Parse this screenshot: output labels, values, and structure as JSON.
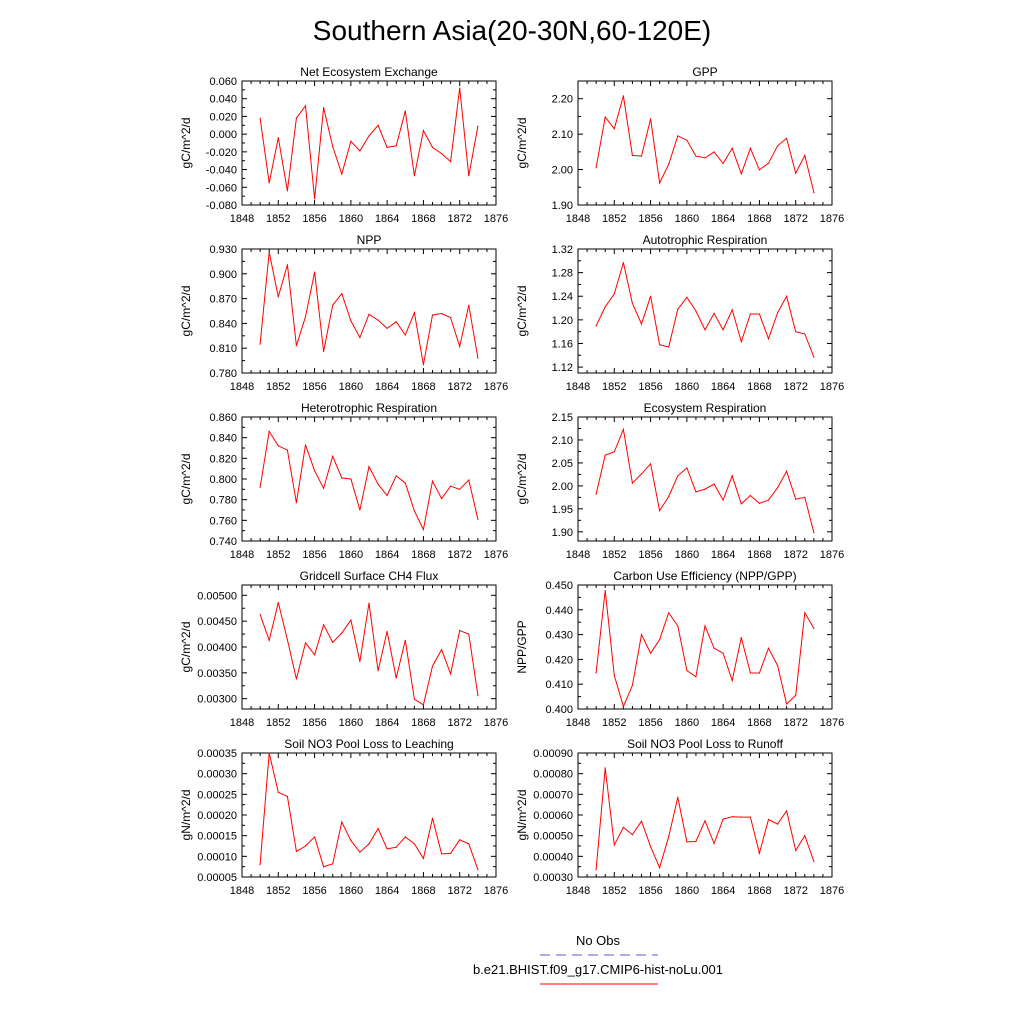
{
  "title": "Southern Asia(20-30N,60-120E)",
  "legend": {
    "obs_label": "No Obs",
    "obs_color": "#5b5bd6",
    "case_label": "b.e21.BHIST.f09_g17.CMIP6-hist-noLu.001",
    "case_color": "#ff0000"
  },
  "chart_data": [
    {
      "type": "line",
      "title": "Net Ecosystem Exchange",
      "ylabel": "gC/m^2/d",
      "xlim": [
        1848,
        1876
      ],
      "xticks": [
        "1848",
        "1852",
        "1856",
        "1860",
        "1864",
        "1868",
        "1872",
        "1876"
      ],
      "ylim": [
        -0.08,
        0.06
      ],
      "yticks": [
        "-0.080",
        "-0.060",
        "-0.040",
        "-0.020",
        "0.000",
        "0.020",
        "0.040",
        "0.060"
      ],
      "x": [
        1850,
        1851,
        1852,
        1853,
        1854,
        1855,
        1856,
        1857,
        1858,
        1859,
        1860,
        1861,
        1862,
        1863,
        1864,
        1865,
        1866,
        1867,
        1868,
        1869,
        1870,
        1871,
        1872,
        1873,
        1874
      ],
      "values": [
        0.018,
        -0.055,
        -0.004,
        -0.064,
        0.018,
        0.032,
        -0.073,
        0.03,
        -0.014,
        -0.045,
        -0.008,
        -0.019,
        -0.002,
        0.01,
        -0.015,
        -0.013,
        0.026,
        -0.047,
        0.004,
        -0.015,
        -0.022,
        -0.031,
        0.052,
        -0.047,
        0.009
      ]
    },
    {
      "type": "line",
      "title": "GPP",
      "ylabel": "gC/m^2/d",
      "xlim": [
        1848,
        1876
      ],
      "xticks": [
        "1848",
        "1852",
        "1856",
        "1860",
        "1864",
        "1868",
        "1872",
        "1876"
      ],
      "ylim": [
        1.9,
        2.25
      ],
      "yticks": [
        "1.90",
        "2.00",
        "2.10",
        "2.20"
      ],
      "x": [
        1850,
        1851,
        1852,
        1853,
        1854,
        1855,
        1856,
        1857,
        1858,
        1859,
        1860,
        1861,
        1862,
        1863,
        1864,
        1865,
        1866,
        1867,
        1868,
        1869,
        1870,
        1871,
        1872,
        1873,
        1874
      ],
      "values": [
        2.005,
        2.148,
        2.115,
        2.208,
        2.04,
        2.038,
        2.143,
        1.962,
        2.015,
        2.095,
        2.083,
        2.038,
        2.033,
        2.05,
        2.017,
        2.06,
        1.988,
        2.06,
        1.999,
        2.018,
        2.067,
        2.088,
        1.99,
        2.04,
        1.935
      ]
    },
    {
      "type": "line",
      "title": "NPP",
      "ylabel": "gC/m^2/d",
      "xlim": [
        1848,
        1876
      ],
      "xticks": [
        "1848",
        "1852",
        "1856",
        "1860",
        "1864",
        "1868",
        "1872",
        "1876"
      ],
      "ylim": [
        0.78,
        0.93
      ],
      "yticks": [
        "0.780",
        "0.810",
        "0.840",
        "0.870",
        "0.900",
        "0.930"
      ],
      "x": [
        1850,
        1851,
        1852,
        1853,
        1854,
        1855,
        1856,
        1857,
        1858,
        1859,
        1860,
        1861,
        1862,
        1863,
        1864,
        1865,
        1866,
        1867,
        1868,
        1869,
        1870,
        1871,
        1872,
        1873,
        1874
      ],
      "values": [
        0.815,
        0.926,
        0.872,
        0.911,
        0.813,
        0.848,
        0.902,
        0.806,
        0.862,
        0.876,
        0.843,
        0.823,
        0.851,
        0.844,
        0.834,
        0.842,
        0.826,
        0.853,
        0.79,
        0.85,
        0.852,
        0.847,
        0.812,
        0.862,
        0.798
      ]
    },
    {
      "type": "line",
      "title": "Autotrophic Respiration",
      "ylabel": "gC/m^2/d",
      "xlim": [
        1848,
        1876
      ],
      "xticks": [
        "1848",
        "1852",
        "1856",
        "1860",
        "1864",
        "1868",
        "1872",
        "1876"
      ],
      "ylim": [
        1.11,
        1.32
      ],
      "yticks": [
        "1.12",
        "1.16",
        "1.20",
        "1.24",
        "1.28",
        "1.32"
      ],
      "x": [
        1850,
        1851,
        1852,
        1853,
        1854,
        1855,
        1856,
        1857,
        1858,
        1859,
        1860,
        1861,
        1862,
        1863,
        1864,
        1865,
        1866,
        1867,
        1868,
        1869,
        1870,
        1871,
        1872,
        1873,
        1874
      ],
      "values": [
        1.19,
        1.222,
        1.244,
        1.297,
        1.228,
        1.193,
        1.24,
        1.158,
        1.154,
        1.218,
        1.238,
        1.215,
        1.183,
        1.211,
        1.183,
        1.217,
        1.163,
        1.21,
        1.21,
        1.168,
        1.212,
        1.24,
        1.18,
        1.176,
        1.137
      ]
    },
    {
      "type": "line",
      "title": "Heterotrophic Respiration",
      "ylabel": "gC/m^2/d",
      "xlim": [
        1848,
        1876
      ],
      "xticks": [
        "1848",
        "1852",
        "1856",
        "1860",
        "1864",
        "1868",
        "1872",
        "1876"
      ],
      "ylim": [
        0.74,
        0.86
      ],
      "yticks": [
        "0.740",
        "0.760",
        "0.780",
        "0.800",
        "0.820",
        "0.840",
        "0.860"
      ],
      "x": [
        1850,
        1851,
        1852,
        1853,
        1854,
        1855,
        1856,
        1857,
        1858,
        1859,
        1860,
        1861,
        1862,
        1863,
        1864,
        1865,
        1866,
        1867,
        1868,
        1869,
        1870,
        1871,
        1872,
        1873,
        1874
      ],
      "values": [
        0.792,
        0.846,
        0.832,
        0.828,
        0.777,
        0.833,
        0.808,
        0.791,
        0.822,
        0.801,
        0.8,
        0.77,
        0.812,
        0.795,
        0.784,
        0.803,
        0.796,
        0.769,
        0.751,
        0.798,
        0.781,
        0.793,
        0.79,
        0.799,
        0.761
      ]
    },
    {
      "type": "line",
      "title": "Ecosystem Respiration",
      "ylabel": "gC/m^2/d",
      "xlim": [
        1848,
        1876
      ],
      "xticks": [
        "1848",
        "1852",
        "1856",
        "1860",
        "1864",
        "1868",
        "1872",
        "1876"
      ],
      "ylim": [
        1.88,
        2.15
      ],
      "yticks": [
        "1.90",
        "1.95",
        "2.00",
        "2.05",
        "2.10",
        "2.15"
      ],
      "x": [
        1850,
        1851,
        1852,
        1853,
        1854,
        1855,
        1856,
        1857,
        1858,
        1859,
        1860,
        1861,
        1862,
        1863,
        1864,
        1865,
        1866,
        1867,
        1868,
        1869,
        1870,
        1871,
        1872,
        1873,
        1874
      ],
      "values": [
        1.982,
        2.067,
        2.074,
        2.123,
        2.006,
        2.026,
        2.048,
        1.946,
        1.977,
        2.022,
        2.039,
        1.987,
        1.993,
        2.004,
        1.969,
        2.022,
        1.961,
        1.979,
        1.962,
        1.969,
        1.996,
        2.032,
        1.971,
        1.975,
        1.898
      ]
    },
    {
      "type": "line",
      "title": "Gridcell Surface CH4 Flux",
      "ylabel": "gC/m^2/d",
      "xlim": [
        1848,
        1876
      ],
      "xticks": [
        "1848",
        "1852",
        "1856",
        "1860",
        "1864",
        "1868",
        "1872",
        "1876"
      ],
      "ylim": [
        0.0028,
        0.0052
      ],
      "yticks": [
        "0.00300",
        "0.00350",
        "0.00400",
        "0.00450",
        "0.00500"
      ],
      "x": [
        1850,
        1851,
        1852,
        1853,
        1854,
        1855,
        1856,
        1857,
        1858,
        1859,
        1860,
        1861,
        1862,
        1863,
        1864,
        1865,
        1866,
        1867,
        1868,
        1869,
        1870,
        1871,
        1872,
        1873,
        1874
      ],
      "values": [
        0.00463,
        0.00413,
        0.00486,
        0.00414,
        0.00338,
        0.00408,
        0.00385,
        0.00443,
        0.00409,
        0.00427,
        0.00452,
        0.00372,
        0.00485,
        0.00354,
        0.0043,
        0.0034,
        0.00413,
        0.00299,
        0.00288,
        0.00363,
        0.00395,
        0.00348,
        0.00432,
        0.00425,
        0.00306
      ]
    },
    {
      "type": "line",
      "title": "Carbon Use Efficiency (NPP/GPP)",
      "ylabel": "NPP/GPP",
      "xlim": [
        1848,
        1876
      ],
      "xticks": [
        "1848",
        "1852",
        "1856",
        "1860",
        "1864",
        "1868",
        "1872",
        "1876"
      ],
      "ylim": [
        0.4,
        0.45
      ],
      "yticks": [
        "0.400",
        "0.410",
        "0.420",
        "0.430",
        "0.440",
        "0.450"
      ],
      "x": [
        1850,
        1851,
        1852,
        1853,
        1854,
        1855,
        1856,
        1857,
        1858,
        1859,
        1860,
        1861,
        1862,
        1863,
        1864,
        1865,
        1866,
        1867,
        1868,
        1869,
        1870,
        1871,
        1872,
        1873,
        1874
      ],
      "values": [
        0.4145,
        0.4478,
        0.4135,
        0.401,
        0.4095,
        0.43,
        0.4225,
        0.428,
        0.4388,
        0.4335,
        0.4155,
        0.413,
        0.4335,
        0.4245,
        0.4225,
        0.4115,
        0.4288,
        0.4145,
        0.4145,
        0.4245,
        0.4175,
        0.402,
        0.4055,
        0.4388,
        0.4325
      ]
    },
    {
      "type": "line",
      "title": "Soil NO3 Pool Loss to Leaching",
      "ylabel": "gN/m^2/d",
      "xlim": [
        1848,
        1876
      ],
      "xticks": [
        "1848",
        "1852",
        "1856",
        "1860",
        "1864",
        "1868",
        "1872",
        "1876"
      ],
      "ylim": [
        5e-05,
        0.00035
      ],
      "yticks": [
        "0.00005",
        "0.00010",
        "0.00015",
        "0.00020",
        "0.00025",
        "0.00030",
        "0.00035"
      ],
      "x": [
        1850,
        1851,
        1852,
        1853,
        1854,
        1855,
        1856,
        1857,
        1858,
        1859,
        1860,
        1861,
        1862,
        1863,
        1864,
        1865,
        1866,
        1867,
        1868,
        1869,
        1870,
        1871,
        1872,
        1873,
        1874
      ],
      "values": [
        8e-05,
        0.00035,
        0.000255,
        0.000245,
        0.000112,
        0.000125,
        0.000147,
        7.5e-05,
        8.2e-05,
        0.000183,
        0.000138,
        0.00011,
        0.00013,
        0.000167,
        0.000118,
        0.000122,
        0.000147,
        0.00013,
        9.5e-05,
        0.000192,
        0.000106,
        0.000107,
        0.00014,
        0.00013,
        6.8e-05
      ]
    },
    {
      "type": "line",
      "title": "Soil NO3 Pool Loss to Runoff",
      "ylabel": "gN/m^2/d",
      "xlim": [
        1848,
        1876
      ],
      "xticks": [
        "1848",
        "1852",
        "1856",
        "1860",
        "1864",
        "1868",
        "1872",
        "1876"
      ],
      "ylim": [
        0.0003,
        0.0009
      ],
      "yticks": [
        "0.00030",
        "0.00040",
        "0.00050",
        "0.00060",
        "0.00070",
        "0.00080",
        "0.00090"
      ],
      "x": [
        1850,
        1851,
        1852,
        1853,
        1854,
        1855,
        1856,
        1857,
        1858,
        1859,
        1860,
        1861,
        1862,
        1863,
        1864,
        1865,
        1866,
        1867,
        1868,
        1869,
        1870,
        1871,
        1872,
        1873,
        1874
      ],
      "values": [
        0.000335,
        0.000828,
        0.000455,
        0.00054,
        0.000505,
        0.00057,
        0.000447,
        0.000345,
        0.000495,
        0.000685,
        0.00047,
        0.000472,
        0.000572,
        0.000462,
        0.00058,
        0.000592,
        0.00059,
        0.00059,
        0.000415,
        0.000578,
        0.000556,
        0.00062,
        0.000428,
        0.0005,
        0.000375
      ]
    }
  ]
}
